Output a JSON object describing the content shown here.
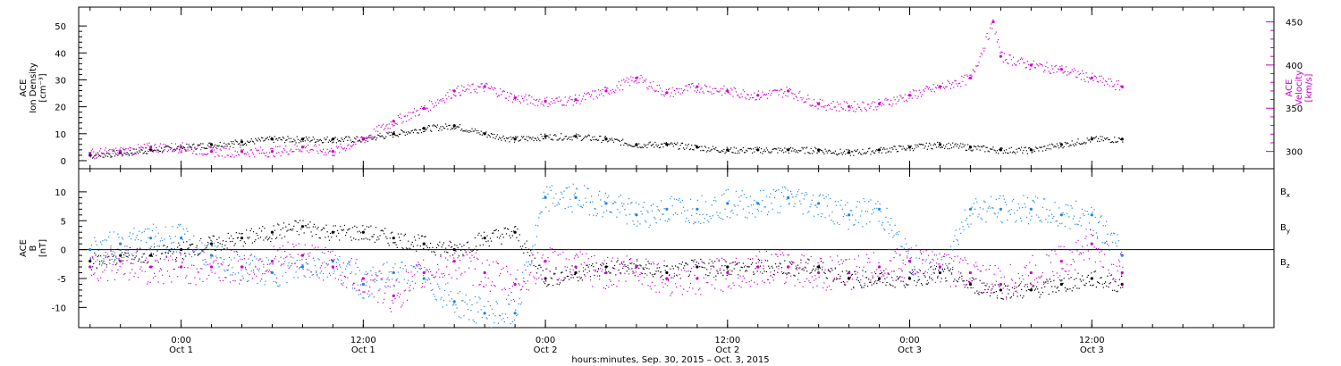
{
  "figure": {
    "xlabel": "hours:minutes, Sep. 30, 2015 – Oct.  3, 2015"
  },
  "colors": {
    "black": "#000000",
    "blue": "#1a86e3",
    "magenta": "#cc00cc"
  },
  "chart_data": [
    {
      "type": "scatter",
      "panel": "density-velocity",
      "ylabel": [
        "ACE",
        "Ion Density",
        "[cm⁻³]"
      ],
      "ylim": [
        -3,
        57
      ],
      "yticks": [
        0,
        10,
        20,
        30,
        40,
        50
      ],
      "y2label": [
        "ACE",
        "Velocity",
        "[km/s]"
      ],
      "y2lim": [
        280,
        467
      ],
      "y2ticks": [
        300,
        350,
        400,
        450
      ],
      "x_ticks": [
        {
          "time": "2015-10-01T00:00",
          "label": "0:00",
          "sub": "Oct 1"
        },
        {
          "time": "2015-10-01T12:00",
          "label": "12:00",
          "sub": "Oct 1"
        },
        {
          "time": "2015-10-02T00:00",
          "label": "0:00",
          "sub": "Oct 2"
        },
        {
          "time": "2015-10-02T12:00",
          "label": "12:00",
          "sub": "Oct 2"
        },
        {
          "time": "2015-10-03T00:00",
          "label": "0:00",
          "sub": "Oct 3"
        },
        {
          "time": "2015-10-03T12:00",
          "label": "12:00",
          "sub": "Oct 3"
        }
      ],
      "xlim": [
        "2015-09-30T17:15",
        "2015-10-04T00:00"
      ],
      "series": [
        {
          "key": "density",
          "color": "#000000",
          "axis": "left",
          "x": [
            "2015-09-30T18:00",
            "2015-09-30T20:00",
            "2015-09-30T22:00",
            "2015-10-01T00:00",
            "2015-10-01T02:00",
            "2015-10-01T04:00",
            "2015-10-01T06:00",
            "2015-10-01T08:00",
            "2015-10-01T10:00",
            "2015-10-01T12:00",
            "2015-10-01T14:00",
            "2015-10-01T16:00",
            "2015-10-01T18:00",
            "2015-10-01T20:00",
            "2015-10-01T22:00",
            "2015-10-02T00:00",
            "2015-10-02T02:00",
            "2015-10-02T04:00",
            "2015-10-02T06:00",
            "2015-10-02T08:00",
            "2015-10-02T10:00",
            "2015-10-02T12:00",
            "2015-10-02T14:00",
            "2015-10-02T16:00",
            "2015-10-02T18:00",
            "2015-10-02T20:00",
            "2015-10-02T22:00",
            "2015-10-03T00:00",
            "2015-10-03T02:00",
            "2015-10-03T04:00",
            "2015-10-03T06:00",
            "2015-10-03T08:00",
            "2015-10-03T10:00",
            "2015-10-03T12:00",
            "2015-10-03T14:00"
          ],
          "y": [
            2,
            3,
            4,
            5,
            6,
            7,
            8,
            8,
            8,
            8,
            10,
            12,
            13,
            10,
            8,
            9,
            9,
            8,
            6,
            6,
            5,
            4,
            4,
            4,
            4,
            3,
            4,
            5,
            6,
            5,
            4,
            4,
            6,
            8,
            8
          ]
        },
        {
          "key": "velocity",
          "color": "#cc00cc",
          "axis": "right",
          "x": [
            "2015-09-30T18:00",
            "2015-09-30T20:00",
            "2015-09-30T22:00",
            "2015-10-01T00:00",
            "2015-10-01T02:00",
            "2015-10-01T04:00",
            "2015-10-01T06:00",
            "2015-10-01T08:00",
            "2015-10-01T10:00",
            "2015-10-01T12:00",
            "2015-10-01T14:00",
            "2015-10-01T16:00",
            "2015-10-01T18:00",
            "2015-10-01T20:00",
            "2015-10-01T22:00",
            "2015-10-02T00:00",
            "2015-10-02T02:00",
            "2015-10-02T04:00",
            "2015-10-02T06:00",
            "2015-10-02T08:00",
            "2015-10-02T10:00",
            "2015-10-02T12:00",
            "2015-10-02T14:00",
            "2015-10-02T16:00",
            "2015-10-02T18:00",
            "2015-10-02T20:00",
            "2015-10-02T22:00",
            "2015-10-03T00:00",
            "2015-10-03T02:00",
            "2015-10-03T04:00",
            "2015-10-03T05:30",
            "2015-10-03T06:00",
            "2015-10-03T08:00",
            "2015-10-03T10:00",
            "2015-10-03T12:00",
            "2015-10-03T14:00"
          ],
          "y": [
            298,
            300,
            305,
            305,
            300,
            300,
            300,
            305,
            300,
            315,
            335,
            350,
            370,
            375,
            362,
            358,
            360,
            370,
            385,
            368,
            375,
            370,
            365,
            370,
            355,
            352,
            355,
            365,
            375,
            385,
            450,
            410,
            400,
            395,
            385,
            375
          ]
        }
      ]
    },
    {
      "type": "scatter",
      "panel": "magnetic-field",
      "ylabel": [
        "ACE",
        "B",
        "[nT]"
      ],
      "ylim": [
        -13.5,
        14
      ],
      "yticks": [
        -10,
        -5,
        0,
        5,
        10
      ],
      "zero_line": true,
      "x_ticks": [
        {
          "time": "2015-10-01T00:00",
          "label": "0:00",
          "sub": "Oct 1"
        },
        {
          "time": "2015-10-01T12:00",
          "label": "12:00",
          "sub": "Oct 1"
        },
        {
          "time": "2015-10-02T00:00",
          "label": "0:00",
          "sub": "Oct 2"
        },
        {
          "time": "2015-10-02T12:00",
          "label": "12:00",
          "sub": "Oct 2"
        },
        {
          "time": "2015-10-03T00:00",
          "label": "0:00",
          "sub": "Oct 3"
        },
        {
          "time": "2015-10-03T12:00",
          "label": "12:00",
          "sub": "Oct 3"
        }
      ],
      "xlim": [
        "2015-09-30T17:15",
        "2015-10-04T00:00"
      ],
      "legend": [
        {
          "name": "B",
          "sub": "x",
          "color": "#000000"
        },
        {
          "name": "B",
          "sub": "y",
          "color": "#1a86e3"
        },
        {
          "name": "B",
          "sub": "z",
          "color": "#cc00cc"
        }
      ],
      "series": [
        {
          "key": "bx",
          "color": "#000000",
          "osc": 1.5,
          "x": [
            "2015-09-30T18:00",
            "2015-09-30T20:00",
            "2015-09-30T22:00",
            "2015-10-01T00:00",
            "2015-10-01T02:00",
            "2015-10-01T04:00",
            "2015-10-01T06:00",
            "2015-10-01T08:00",
            "2015-10-01T10:00",
            "2015-10-01T12:00",
            "2015-10-01T14:00",
            "2015-10-01T16:00",
            "2015-10-01T18:00",
            "2015-10-01T20:00",
            "2015-10-01T22:00",
            "2015-10-02T00:00",
            "2015-10-02T02:00",
            "2015-10-02T04:00",
            "2015-10-02T06:00",
            "2015-10-02T08:00",
            "2015-10-02T10:00",
            "2015-10-02T12:00",
            "2015-10-02T14:00",
            "2015-10-02T16:00",
            "2015-10-02T18:00",
            "2015-10-02T20:00",
            "2015-10-02T22:00",
            "2015-10-03T00:00",
            "2015-10-03T02:00",
            "2015-10-03T04:00",
            "2015-10-03T06:00",
            "2015-10-03T08:00",
            "2015-10-03T10:00",
            "2015-10-03T12:00",
            "2015-10-03T14:00"
          ],
          "y": [
            -2,
            -1,
            -1,
            0,
            1,
            2,
            3,
            4,
            3,
            3,
            2,
            1,
            0,
            2,
            3,
            -5,
            -4,
            -3,
            -3,
            -4,
            -3,
            -3,
            -3,
            -3,
            -3,
            -5,
            -5,
            -5,
            -4,
            -6,
            -7,
            -7,
            -6,
            -5,
            -6
          ]
        },
        {
          "key": "by",
          "color": "#1a86e3",
          "osc": 2.5,
          "x": [
            "2015-09-30T18:00",
            "2015-09-30T20:00",
            "2015-09-30T22:00",
            "2015-10-01T00:00",
            "2015-10-01T02:00",
            "2015-10-01T04:00",
            "2015-10-01T06:00",
            "2015-10-01T08:00",
            "2015-10-01T10:00",
            "2015-10-01T12:00",
            "2015-10-01T14:00",
            "2015-10-01T16:00",
            "2015-10-01T18:00",
            "2015-10-01T20:00",
            "2015-10-01T22:00",
            "2015-10-02T00:00",
            "2015-10-02T02:00",
            "2015-10-02T04:00",
            "2015-10-02T06:00",
            "2015-10-02T08:00",
            "2015-10-02T10:00",
            "2015-10-02T12:00",
            "2015-10-02T14:00",
            "2015-10-02T16:00",
            "2015-10-02T18:00",
            "2015-10-02T20:00",
            "2015-10-02T22:00",
            "2015-10-03T00:00",
            "2015-10-03T02:00",
            "2015-10-03T04:00",
            "2015-10-03T06:00",
            "2015-10-03T08:00",
            "2015-10-03T10:00",
            "2015-10-03T12:00",
            "2015-10-03T14:00"
          ],
          "y": [
            0,
            1,
            2,
            2,
            -1,
            -3,
            -4,
            -3,
            -2,
            -6,
            -4,
            -5,
            -9,
            -11,
            -11,
            9,
            9,
            8,
            6,
            7,
            7,
            8,
            8,
            9,
            8,
            6,
            7,
            -2,
            -3,
            7,
            7,
            7,
            6,
            6,
            -1
          ]
        },
        {
          "key": "bz",
          "color": "#cc00cc",
          "osc": 3,
          "x": [
            "2015-09-30T18:00",
            "2015-09-30T20:00",
            "2015-09-30T22:00",
            "2015-10-01T00:00",
            "2015-10-01T02:00",
            "2015-10-01T04:00",
            "2015-10-01T06:00",
            "2015-10-01T08:00",
            "2015-10-01T10:00",
            "2015-10-01T12:00",
            "2015-10-01T14:00",
            "2015-10-01T16:00",
            "2015-10-01T18:00",
            "2015-10-01T20:00",
            "2015-10-01T22:00",
            "2015-10-02T00:00",
            "2015-10-02T02:00",
            "2015-10-02T04:00",
            "2015-10-02T06:00",
            "2015-10-02T08:00",
            "2015-10-02T10:00",
            "2015-10-02T12:00",
            "2015-10-02T14:00",
            "2015-10-02T16:00",
            "2015-10-02T18:00",
            "2015-10-02T20:00",
            "2015-10-02T22:00",
            "2015-10-03T00:00",
            "2015-10-03T02:00",
            "2015-10-03T04:00",
            "2015-10-03T06:00",
            "2015-10-03T08:00",
            "2015-10-03T10:00",
            "2015-10-03T12:00",
            "2015-10-03T14:00"
          ],
          "y": [
            -3,
            -2,
            -3,
            -3,
            -3,
            -3,
            -2,
            -1,
            -3,
            -5,
            -8,
            -4,
            -2,
            -4,
            -6,
            -2,
            -3,
            -4,
            -3,
            -5,
            -5,
            -4,
            -3,
            -3,
            -4,
            -4,
            -3,
            -2,
            -3,
            -4,
            -6,
            -4,
            -2,
            1,
            -4
          ]
        }
      ]
    }
  ]
}
